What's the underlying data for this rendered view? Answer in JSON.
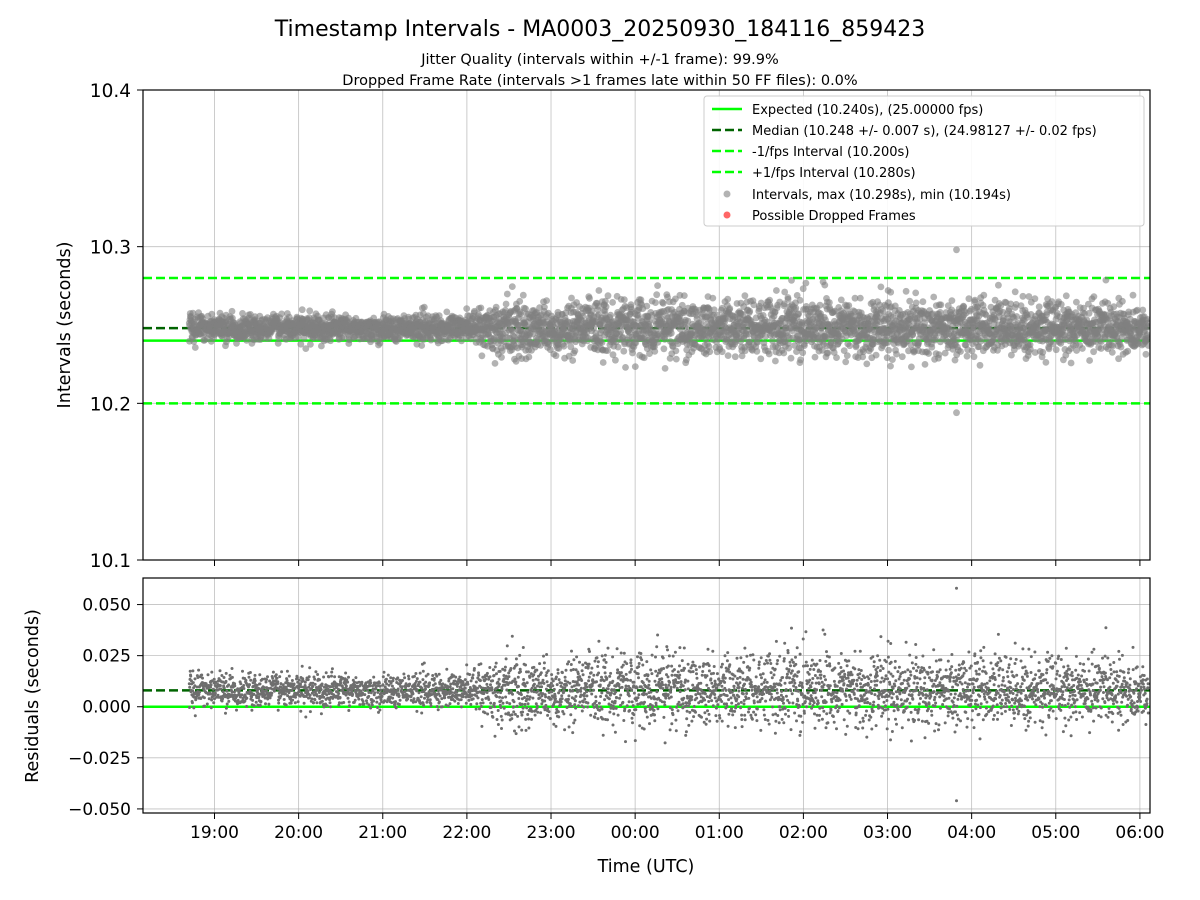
{
  "title": "Timestamp Intervals - MA0003_20250930_184116_859423",
  "subtitle_jitter": "Jitter Quality (intervals within +/-1 frame): 99.9%",
  "subtitle_dropped": "Dropped Frame Rate (intervals >1 frames late within 50 FF files): 0.0%",
  "colors": {
    "expected": "#00ff00",
    "median": "#006400",
    "interval_band": "#00ff00",
    "points": "#808080",
    "dropped": "#ff0000",
    "grid": "#b0b0b0"
  },
  "chart_data": [
    {
      "type": "scatter",
      "panel": "intervals",
      "ylabel": "Intervals (seconds)",
      "ylim": [
        10.1,
        10.4
      ],
      "yticks": [
        10.1,
        10.2,
        10.3,
        10.4
      ],
      "ytick_labels": [
        "10.1",
        "10.2",
        "10.3",
        "10.4"
      ],
      "xlim_hours": [
        18.15,
        30.12
      ],
      "grid": true,
      "legend_position": "top-right",
      "lines": [
        {
          "name": "Expected",
          "y": 10.24,
          "style": "solid",
          "label": "Expected (10.240s), (25.00000 fps)"
        },
        {
          "name": "Median",
          "y": 10.248,
          "style": "dashed",
          "label": "Median (10.248 +/- 0.007 s), (24.98127 +/- 0.02 fps)"
        },
        {
          "name": "-1/fps Interval",
          "y": 10.2,
          "style": "dashed",
          "label": "-1/fps Interval (10.200s)"
        },
        {
          "name": "+1/fps Interval",
          "y": 10.28,
          "style": "dashed",
          "label": "+1/fps Interval (10.280s)"
        }
      ],
      "scatter_legend": "Intervals, max (10.298s), min (10.194s)",
      "dropped_legend": "Possible Dropped Frames",
      "series": {
        "start_hour": 18.7,
        "end_hour": 30.1,
        "count": 4000,
        "median": 10.248,
        "max": 10.298,
        "min": 10.194,
        "max_at_hour": 27.82,
        "min_at_hour": 27.82,
        "noise_profile": [
          {
            "hour": 18.7,
            "sd": 0.004
          },
          {
            "hour": 22.0,
            "sd": 0.0045
          },
          {
            "hour": 22.5,
            "sd": 0.009
          },
          {
            "hour": 27.0,
            "sd": 0.009
          },
          {
            "hour": 30.1,
            "sd": 0.008
          }
        ]
      }
    },
    {
      "type": "scatter",
      "panel": "residuals",
      "ylabel": "Residuals (seconds)",
      "xlabel": "Time (UTC)",
      "ylim": [
        -0.052,
        0.063
      ],
      "yticks": [
        -0.05,
        -0.025,
        0.0,
        0.025,
        0.05
      ],
      "ytick_labels": [
        "−0.050",
        "−0.025",
        "0.000",
        "0.025",
        "0.050"
      ],
      "xlim_hours": [
        18.15,
        30.12
      ],
      "xticks_hours": [
        19,
        20,
        21,
        22,
        23,
        24,
        25,
        26,
        27,
        28,
        29,
        30
      ],
      "xtick_labels": [
        "19:00",
        "20:00",
        "21:00",
        "22:00",
        "23:00",
        "00:00",
        "01:00",
        "02:00",
        "03:00",
        "04:00",
        "05:00",
        "06:00"
      ],
      "grid": true,
      "lines": [
        {
          "name": "Expected",
          "y": 0.0,
          "style": "solid"
        },
        {
          "name": "Median",
          "y": 0.008,
          "style": "dashed"
        }
      ],
      "residual_max": 0.058,
      "residual_min": -0.046
    }
  ]
}
